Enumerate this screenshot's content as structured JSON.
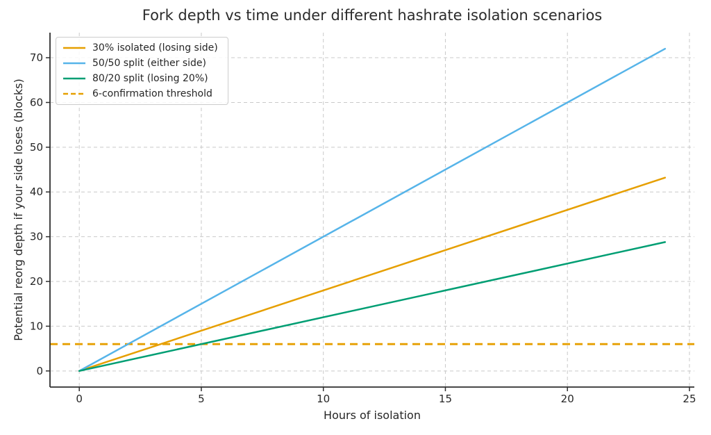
{
  "chart_data": {
    "type": "line",
    "title": "Fork depth vs time under different hashrate isolation scenarios",
    "xlabel": "Hours of isolation",
    "ylabel": "Potential reorg depth if your side loses (blocks)",
    "xlim": [
      -1.2,
      25.2
    ],
    "ylim": [
      -3.6,
      75.6
    ],
    "xticks": [
      0,
      5,
      10,
      15,
      20,
      25
    ],
    "yticks": [
      0,
      10,
      20,
      30,
      40,
      50,
      60,
      70
    ],
    "grid": true,
    "grid_style": "dashed",
    "legend_position": "upper-left",
    "series": [
      {
        "name": "30% isolated (losing side)",
        "color": "#E69F00",
        "style": "solid",
        "x": [
          0,
          24
        ],
        "y": [
          0,
          43.2
        ]
      },
      {
        "name": "50/50 split (either side)",
        "color": "#56B4E9",
        "style": "solid",
        "x": [
          0,
          24
        ],
        "y": [
          0,
          72
        ]
      },
      {
        "name": "80/20 split (losing 20%)",
        "color": "#009E73",
        "style": "solid",
        "x": [
          0,
          24
        ],
        "y": [
          0,
          28.8
        ]
      },
      {
        "name": "6-confirmation threshold",
        "color": "#E69F00",
        "style": "dashed",
        "x": [
          -1.2,
          25.2
        ],
        "y": [
          6,
          6
        ]
      }
    ]
  },
  "colors": {
    "background": "#FFFFFF",
    "grid": "#C9C9C9",
    "spine": "#2E2E2E",
    "tick": "#2E2E2E",
    "text": "#262626",
    "title": "#2B2B2B"
  }
}
